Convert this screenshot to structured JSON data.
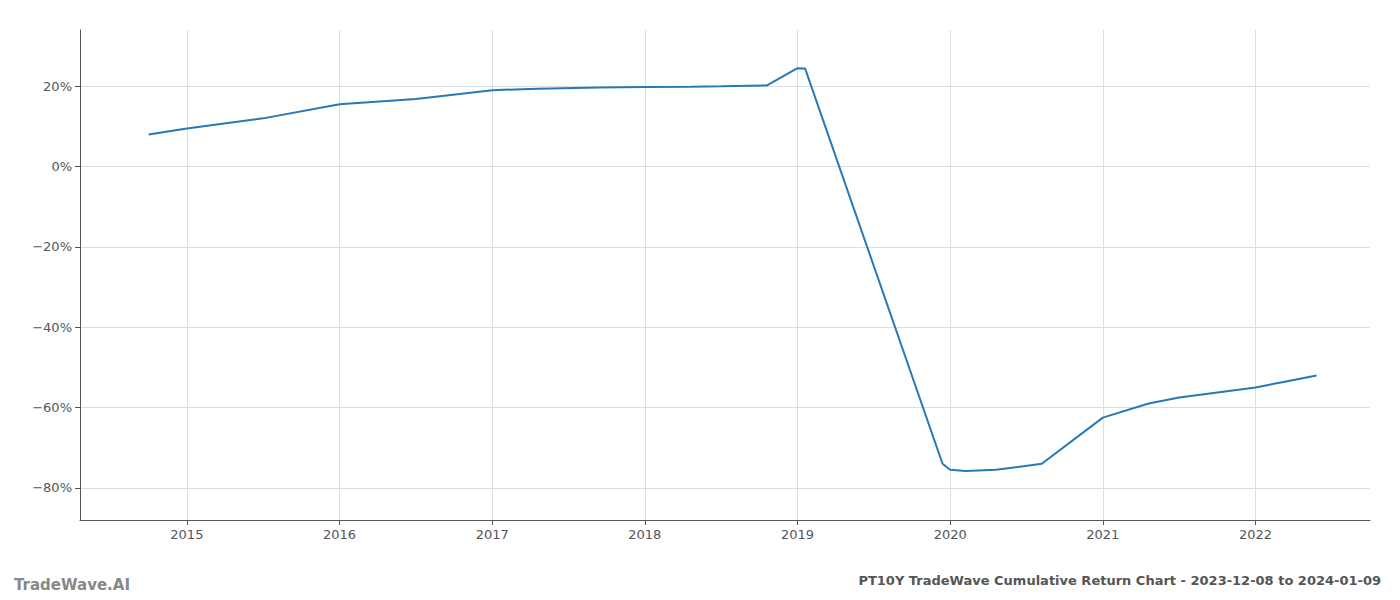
{
  "chart_data": {
    "type": "line",
    "title": "PT10Y TradeWave Cumulative Return Chart - 2023-12-08 to 2024-01-09",
    "annotations": [
      "TradeWave.AI"
    ],
    "x": [
      2014.75,
      2015.0,
      2015.5,
      2016.0,
      2016.5,
      2017.0,
      2017.3,
      2017.7,
      2018.0,
      2018.3,
      2018.5,
      2018.8,
      2019.0,
      2019.05,
      2019.95,
      2020.0,
      2020.1,
      2020.3,
      2020.6,
      2021.0,
      2021.3,
      2021.5,
      2021.8,
      2022.0,
      2022.2,
      2022.4
    ],
    "values": [
      0.08,
      0.095,
      0.12,
      0.155,
      0.168,
      0.19,
      0.194,
      0.197,
      0.198,
      0.199,
      0.2,
      0.202,
      0.245,
      0.244,
      -0.74,
      -0.755,
      -0.758,
      -0.755,
      -0.74,
      -0.625,
      -0.59,
      -0.575,
      -0.56,
      -0.55,
      -0.535,
      -0.52
    ],
    "color": "#2878b5",
    "xlim": [
      2014.3,
      2022.75
    ],
    "xticks": [
      2015,
      2016,
      2017,
      2018,
      2019,
      2020,
      2021,
      2022
    ],
    "ylim": [
      -0.88,
      0.34
    ],
    "yticks": [
      {
        "value": -0.8,
        "label": "−80%"
      },
      {
        "value": -0.6,
        "label": "−60%"
      },
      {
        "value": -0.4,
        "label": "−40%"
      },
      {
        "value": -0.2,
        "label": "−20%"
      },
      {
        "value": 0.0,
        "label": "0%"
      },
      {
        "value": 0.2,
        "label": "20%"
      }
    ],
    "grid": true
  }
}
